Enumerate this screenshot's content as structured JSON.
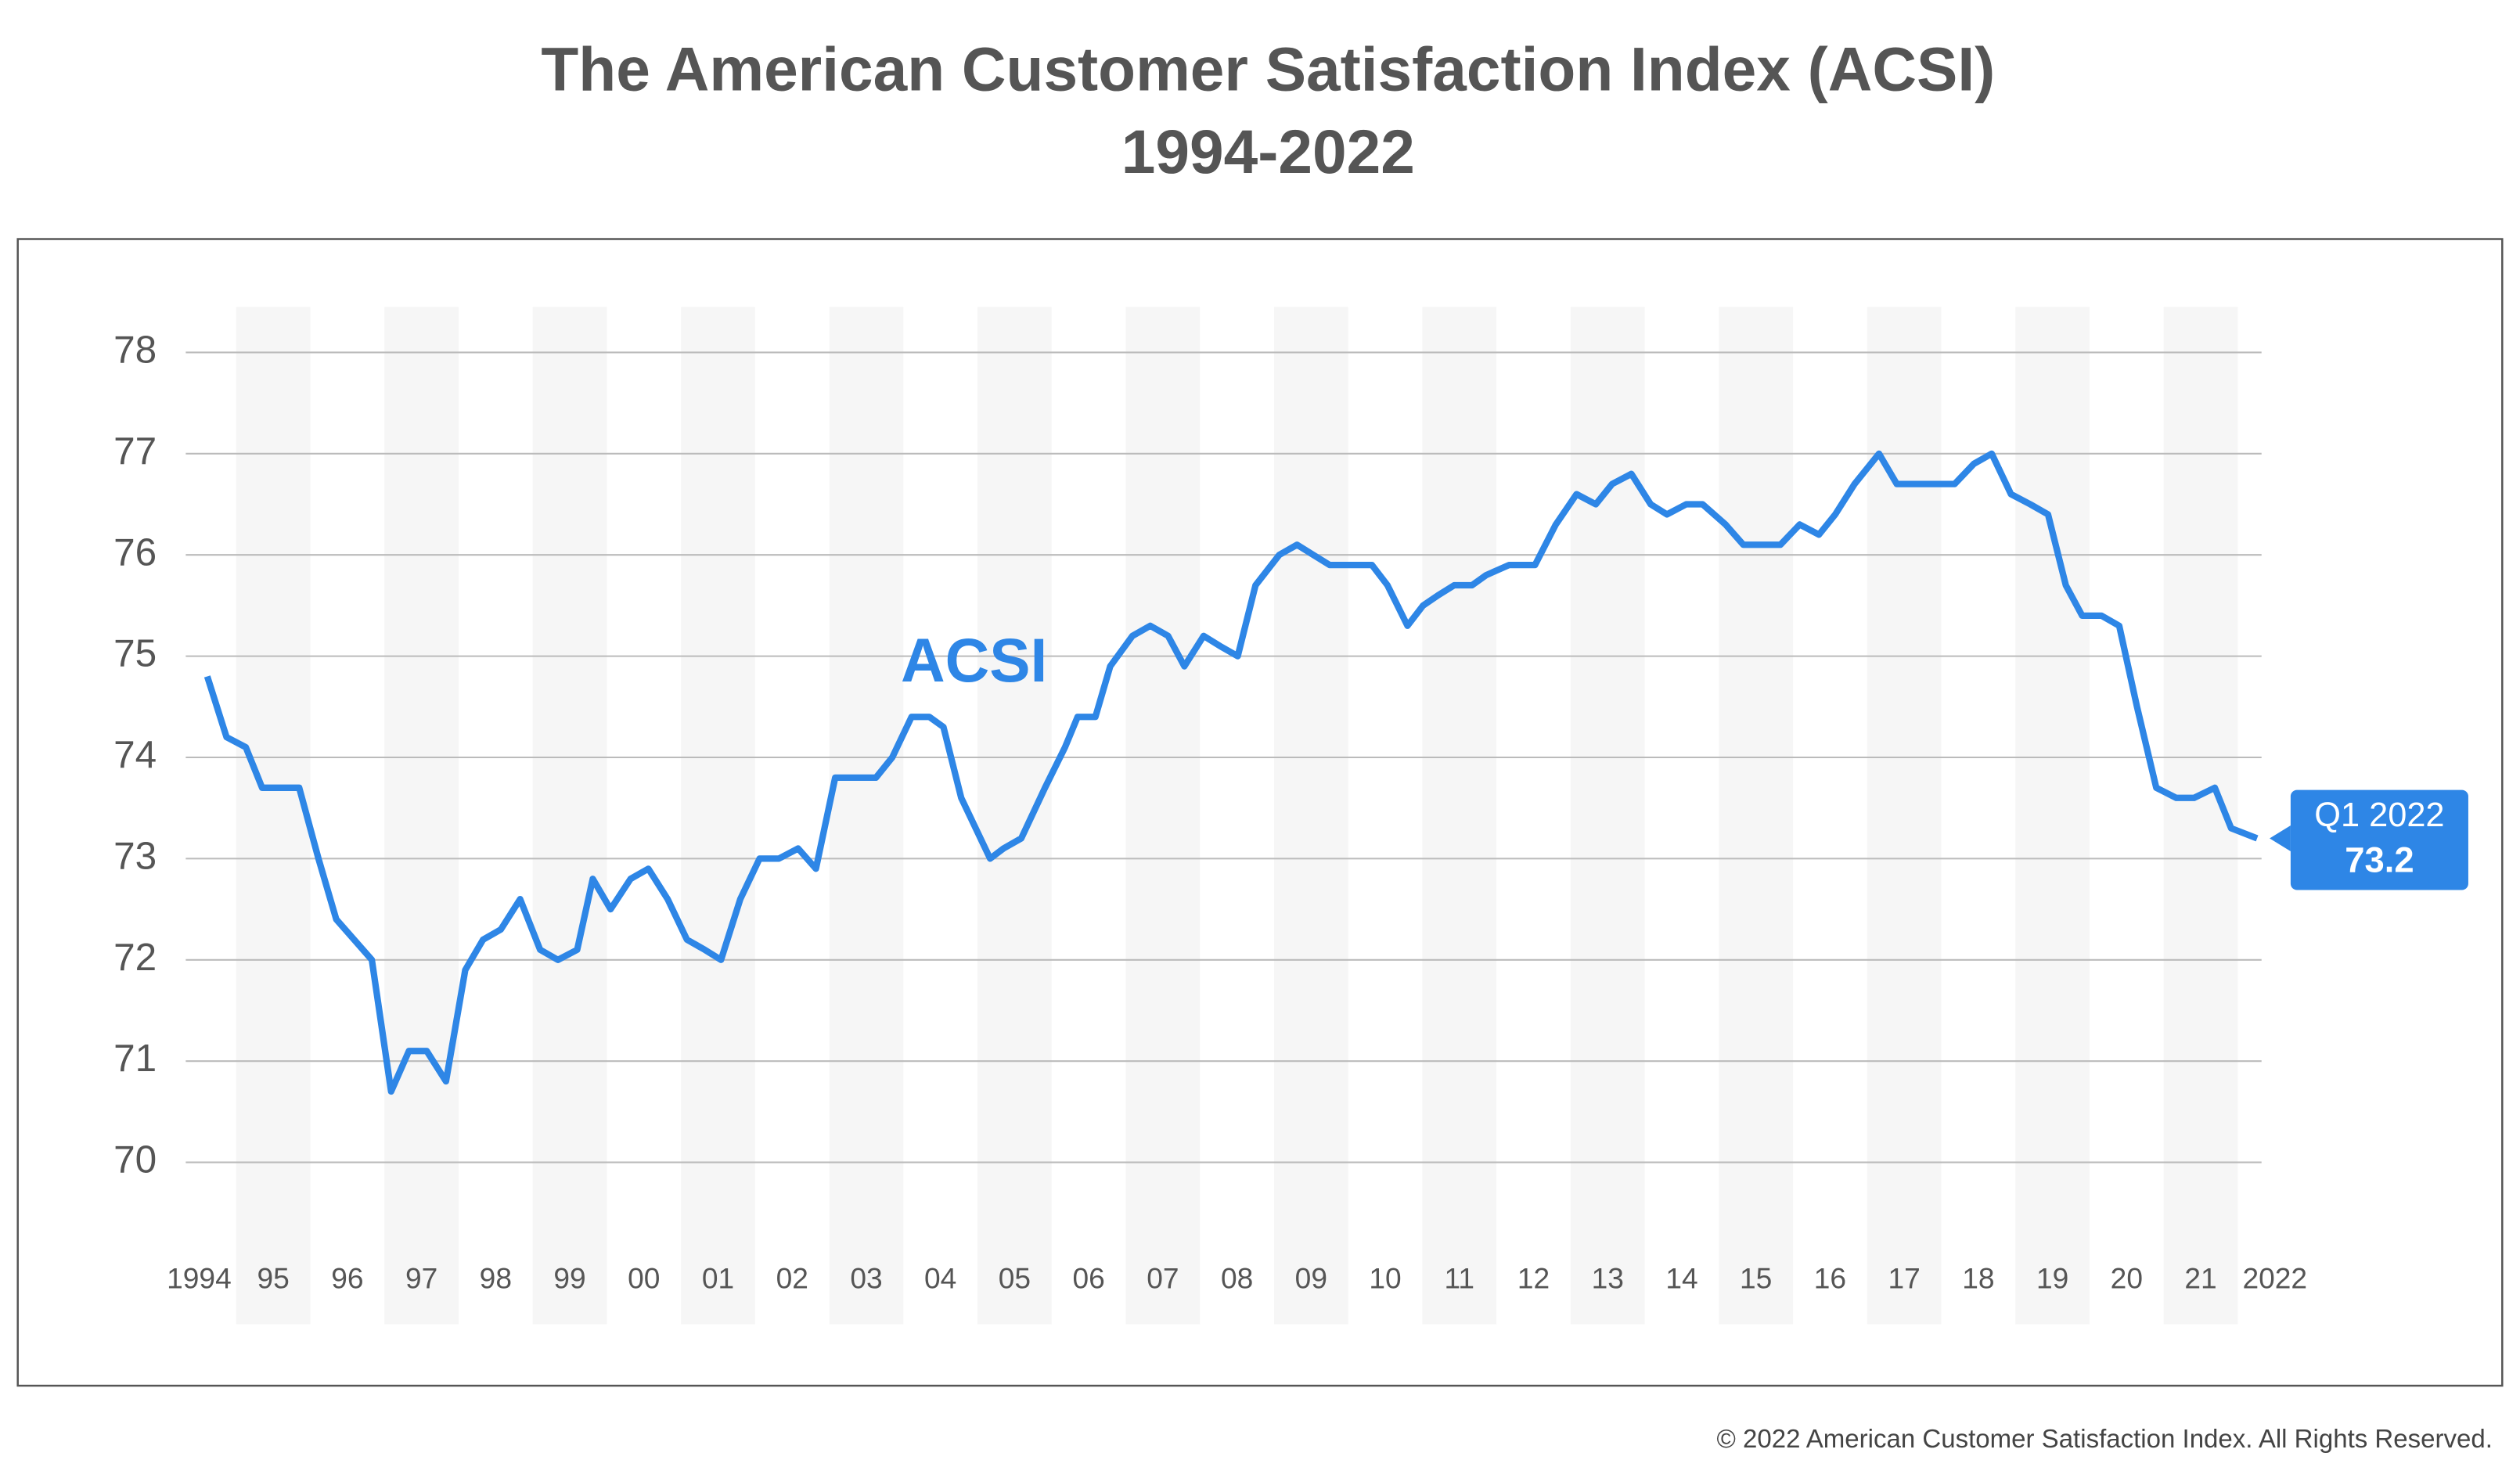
{
  "chart_data": {
    "type": "line",
    "title": "The American Customer Satisfaction Index (ACSI)",
    "subtitle": "1994-2022",
    "x": [
      1994.61,
      1994.87,
      1995.13,
      1995.35,
      1995.61,
      1995.85,
      1996.11,
      1996.35,
      1996.59,
      1996.83,
      1997.09,
      1997.33,
      1997.57,
      1997.83,
      1998.09,
      1998.33,
      1998.57,
      1998.83,
      1999.1,
      1999.34,
      1999.6,
      1999.81,
      2000.05,
      2000.32,
      2000.56,
      2000.82,
      2001.08,
      2001.32,
      2001.54,
      2001.8,
      2002.06,
      2002.32,
      2002.58,
      2002.82,
      2003.08,
      2003.34,
      2003.63,
      2003.85,
      2004.11,
      2004.35,
      2004.54,
      2004.78,
      2005.17,
      2005.35,
      2005.59,
      2005.91,
      2006.18,
      2006.35,
      2006.59,
      2006.79,
      2007.09,
      2007.33,
      2007.57,
      2007.79,
      2008.05,
      2008.27,
      2008.51,
      2008.75,
      2009.07,
      2009.31,
      2009.53,
      2009.75,
      2010.01,
      2010.32,
      2010.53,
      2010.8,
      2011.01,
      2011.21,
      2011.43,
      2011.67,
      2011.86,
      2012.17,
      2012.52,
      2012.8,
      2013.08,
      2013.34,
      2013.56,
      2013.82,
      2014.08,
      2014.3,
      2014.56,
      2014.78,
      2015.09,
      2015.33,
      2015.59,
      2015.83,
      2016.09,
      2016.35,
      2016.57,
      2016.83,
      2017.16,
      2017.4,
      2017.7,
      2017.94,
      2018.18,
      2018.44,
      2018.68,
      2018.94,
      2019.2,
      2019.44,
      2019.68,
      2019.9,
      2020.16,
      2020.4,
      2020.64,
      2020.9,
      2021.17,
      2021.41,
      2021.69,
      2021.91,
      2022.26
    ],
    "series": [
      {
        "name": "ACSI",
        "color": "#2e86e6",
        "values": [
          74.8,
          74.2,
          74.1,
          73.7,
          73.7,
          73.7,
          73.0,
          72.4,
          72.2,
          72.0,
          70.7,
          71.1,
          71.1,
          70.8,
          71.9,
          72.2,
          72.3,
          72.6,
          72.1,
          72.0,
          72.1,
          72.8,
          72.5,
          72.8,
          72.9,
          72.6,
          72.2,
          72.1,
          72.0,
          72.6,
          73.0,
          73.0,
          73.1,
          72.9,
          73.8,
          73.8,
          73.8,
          74.0,
          74.4,
          74.4,
          74.3,
          73.6,
          73.0,
          73.1,
          73.2,
          73.7,
          74.1,
          74.4,
          74.4,
          74.9,
          75.2,
          75.3,
          75.2,
          74.9,
          75.2,
          75.1,
          75.0,
          75.7,
          76.0,
          76.1,
          76.0,
          75.9,
          75.9,
          75.9,
          75.7,
          75.3,
          75.5,
          75.6,
          75.7,
          75.7,
          75.8,
          75.9,
          75.9,
          76.3,
          76.6,
          76.5,
          76.7,
          76.8,
          76.5,
          76.4,
          76.5,
          76.5,
          76.3,
          76.1,
          76.1,
          76.1,
          76.3,
          76.2,
          76.4,
          76.7,
          77.0,
          76.7,
          76.7,
          76.7,
          76.7,
          76.9,
          77.0,
          76.6,
          76.5,
          76.4,
          75.7,
          75.4,
          75.4,
          75.3,
          74.5,
          73.7,
          73.6,
          73.6,
          73.7,
          73.3,
          73.2
        ]
      }
    ],
    "xlim": [
      1994.32,
      2022.32
    ],
    "xticks": [
      {
        "value": 1994.5,
        "label": "1994"
      },
      {
        "value": 1995.5,
        "label": "95"
      },
      {
        "value": 1996.5,
        "label": "96"
      },
      {
        "value": 1997.5,
        "label": "97"
      },
      {
        "value": 1998.5,
        "label": "98"
      },
      {
        "value": 1999.5,
        "label": "99"
      },
      {
        "value": 2000.5,
        "label": "00"
      },
      {
        "value": 2001.5,
        "label": "01"
      },
      {
        "value": 2002.5,
        "label": "02"
      },
      {
        "value": 2003.5,
        "label": "03"
      },
      {
        "value": 2004.5,
        "label": "04"
      },
      {
        "value": 2005.5,
        "label": "05"
      },
      {
        "value": 2006.5,
        "label": "06"
      },
      {
        "value": 2007.5,
        "label": "07"
      },
      {
        "value": 2008.5,
        "label": "08"
      },
      {
        "value": 2009.5,
        "label": "09"
      },
      {
        "value": 2010.5,
        "label": "10"
      },
      {
        "value": 2011.5,
        "label": "11"
      },
      {
        "value": 2012.5,
        "label": "12"
      },
      {
        "value": 2013.5,
        "label": "13"
      },
      {
        "value": 2014.5,
        "label": "14"
      },
      {
        "value": 2015.5,
        "label": "15"
      },
      {
        "value": 2016.5,
        "label": "16"
      },
      {
        "value": 2017.5,
        "label": "17"
      },
      {
        "value": 2018.5,
        "label": "18"
      },
      {
        "value": 2019.5,
        "label": "19"
      },
      {
        "value": 2020.5,
        "label": "20"
      },
      {
        "value": 2021.5,
        "label": "21"
      },
      {
        "value": 2022.5,
        "label": "2022"
      }
    ],
    "ylim": [
      68.4,
      78.45
    ],
    "yticks": [
      70,
      71,
      72,
      73,
      74,
      75,
      76,
      77,
      78
    ],
    "grid": true,
    "callout": {
      "label": "Q1 2022",
      "value": 73.2
    },
    "footer": "© 2022 American Customer Satisfaction Index. All Rights Reserved."
  }
}
